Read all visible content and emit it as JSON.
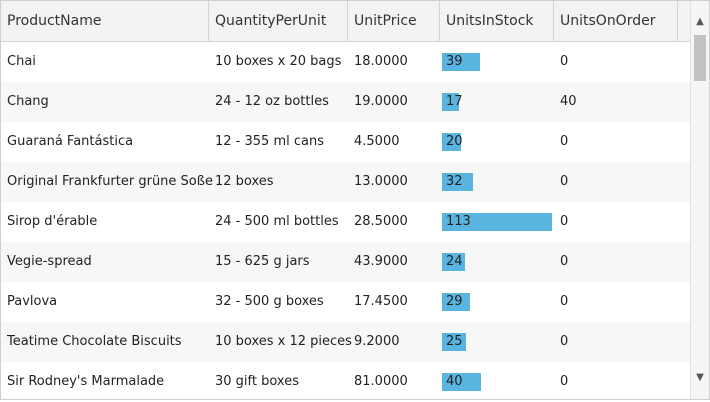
{
  "columns": [
    "ProductName",
    "QuantityPerUnit",
    "UnitPrice",
    "UnitsInStock",
    "UnitsOnOrder"
  ],
  "rows": [
    {
      "name": "Chai",
      "qty": "10 boxes x 20 bags",
      "price": "18.0000",
      "stock": "39",
      "order": "0"
    },
    {
      "name": "Chang",
      "qty": "24 - 12 oz bottles",
      "price": "19.0000",
      "stock": "17",
      "order": "40"
    },
    {
      "name": "Guaraná Fantástica",
      "qty": "12 - 355 ml cans",
      "price": "4.5000",
      "stock": "20",
      "order": "0"
    },
    {
      "name": "Original Frankfurter grüne Soße",
      "qty": "12 boxes",
      "price": "13.0000",
      "stock": "32",
      "order": "0"
    },
    {
      "name": "Sirop d'érable",
      "qty": "24 - 500 ml bottles",
      "price": "28.5000",
      "stock": "113",
      "order": "0"
    },
    {
      "name": "Vegie-spread",
      "qty": "15 - 625 g jars",
      "price": "43.9000",
      "stock": "24",
      "order": "0"
    },
    {
      "name": "Pavlova",
      "qty": "32 - 500 g boxes",
      "price": "17.4500",
      "stock": "29",
      "order": "0"
    },
    {
      "name": "Teatime Chocolate Biscuits",
      "qty": "10 boxes x 12 pieces",
      "price": "9.2000",
      "stock": "25",
      "order": "0"
    },
    {
      "name": "Sir Rodney's Marmalade",
      "qty": "30 gift boxes",
      "price": "81.0000",
      "stock": "40",
      "order": "0"
    }
  ],
  "stock_bar_max": 113,
  "colors": {
    "bar": "#5ab4e0",
    "header_bg": "#f3f3f3",
    "alt_row": "#f7f7f7"
  },
  "icons": {
    "scroll_up": "chevron-up-icon",
    "scroll_down": "chevron-down-icon"
  }
}
